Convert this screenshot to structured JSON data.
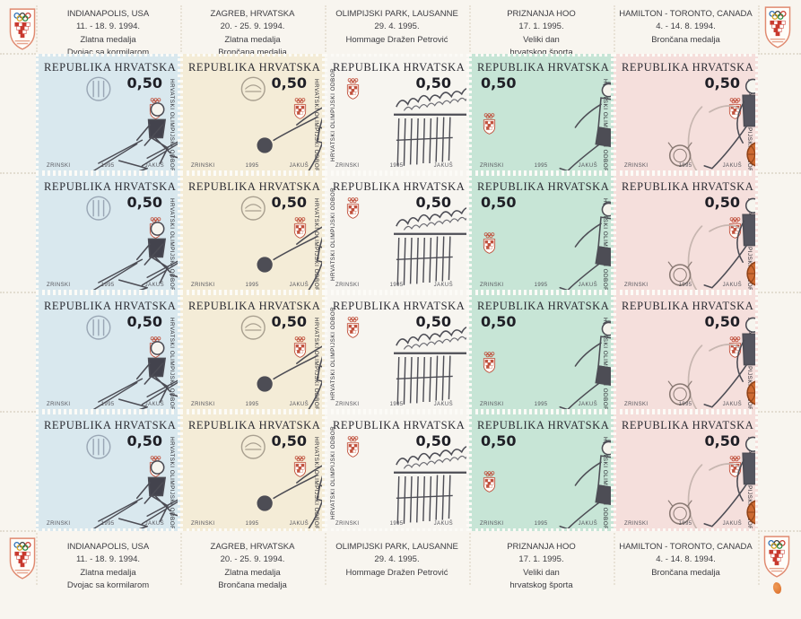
{
  "paper_color": "#f8f5ef",
  "accent_red": "#c8392e",
  "rows": 4,
  "icons": {
    "corner_emblem": "croatian-olympic-committee-shield",
    "stamp_emblem": "olympic-rings-checker-shield"
  },
  "header_labels": [
    {
      "lines": [
        "INDIANAPOLIS, USA",
        "11. - 18. 9. 1994.",
        "Zlatna medalja",
        "Dvojac sa kormilarom"
      ]
    },
    {
      "lines": [
        "ZAGREB, HRVATSKA",
        "20. - 25. 9. 1994.",
        "Zlatna medalja",
        "Brončana medalja"
      ]
    },
    {
      "lines": [
        "OLIMPIJSKI PARK, LAUSANNE",
        "29. 4. 1995.",
        "Hommage Dražen Petrović"
      ]
    },
    {
      "lines": [
        "PRIZNANJA HOO",
        "17. 1. 1995.",
        "Veliki dan",
        "hrvatskog športa"
      ]
    },
    {
      "lines": [
        "HAMILTON - TORONTO, CANADA",
        "4. - 14. 8. 1994.",
        "Brončana medalja"
      ]
    }
  ],
  "footer_labels": [
    {
      "lines": [
        "INDIANAPOLIS, USA",
        "11. - 18. 9. 1994.",
        "Zlatna medalja",
        "Dvojac sa kormilarom"
      ]
    },
    {
      "lines": [
        "ZAGREB, HRVATSKA",
        "20. - 25. 9. 1994.",
        "Zlatna medalja",
        "Brončana medalja"
      ]
    },
    {
      "lines": [
        "OLIMPIJSKI PARK, LAUSANNE",
        "29. 4. 1995.",
        "Hommage Dražen Petrović"
      ]
    },
    {
      "lines": [
        "PRIZNANJA HOO",
        "17. 1. 1995.",
        "Veliki dan",
        "hrvatskog športa"
      ]
    },
    {
      "lines": [
        "HAMILTON - TORONTO, CANADA",
        "4. - 14. 8. 1994.",
        "Brončana medalja"
      ]
    }
  ],
  "stamp": {
    "country": "REPUBLIKA HRVATSKA",
    "value": "0,50",
    "committee": "HRVATSKI OLIMPIJSKI ODBOR",
    "designer": "ZRINSKI",
    "year": "1995",
    "engraver": "JAKUŠ"
  },
  "columns": [
    {
      "subject": "rowing-coxed-pair",
      "bg": "#d9e8ee"
    },
    {
      "subject": "bocce-player",
      "bg": "#f4ecd7"
    },
    {
      "subject": "olympic-park-lausanne",
      "bg": "#f7f5f0"
    },
    {
      "subject": "tennis-player",
      "bg": "#c7e5d6"
    },
    {
      "subject": "basketball-player",
      "bg": "#f5dfdc"
    }
  ]
}
